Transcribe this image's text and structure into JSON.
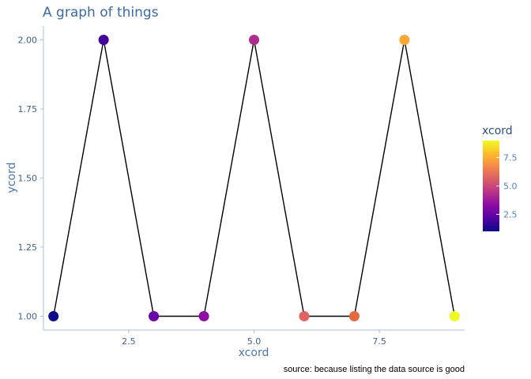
{
  "chart_data": {
    "type": "scatter",
    "title": "A graph of things",
    "xlabel": "xcord",
    "ylabel": "ycord",
    "caption": "source: because listing the data source is good",
    "x": [
      1,
      2,
      3,
      4,
      5,
      6,
      7,
      8,
      9
    ],
    "y": [
      1,
      2,
      1,
      1,
      2,
      1,
      1,
      2,
      1
    ],
    "point_colors": [
      "#0d0887",
      "#41049d",
      "#6a00a8",
      "#8f0da4",
      "#b12a90",
      "#e16462",
      "#e6683f",
      "#fca636",
      "#f0f921"
    ],
    "line_color": "#000000",
    "connected_by_line": true,
    "xlim": [
      0.8,
      9.2
    ],
    "ylim": [
      0.95,
      2.05
    ],
    "x_ticks": [
      2.5,
      5.0,
      7.5
    ],
    "x_tick_labels": [
      "2.5",
      "5.0",
      "7.5"
    ],
    "y_ticks": [
      1.0,
      1.25,
      1.5,
      1.75,
      2.0
    ],
    "y_tick_labels": [
      "1.00",
      "1.25",
      "1.50",
      "1.75",
      "2.00"
    ],
    "grid": false,
    "legend": {
      "title": "xcord",
      "placement": "right",
      "type": "colorbar",
      "range": [
        1,
        9
      ],
      "ticks": [
        2.5,
        5.0,
        7.5
      ],
      "tick_labels": [
        "2.5",
        "5.0",
        "7.5"
      ],
      "colors": [
        "#0d0887",
        "#5302a3",
        "#8b0aa5",
        "#b83289",
        "#db5c68",
        "#f48849",
        "#febc2a",
        "#f0f921"
      ]
    }
  }
}
